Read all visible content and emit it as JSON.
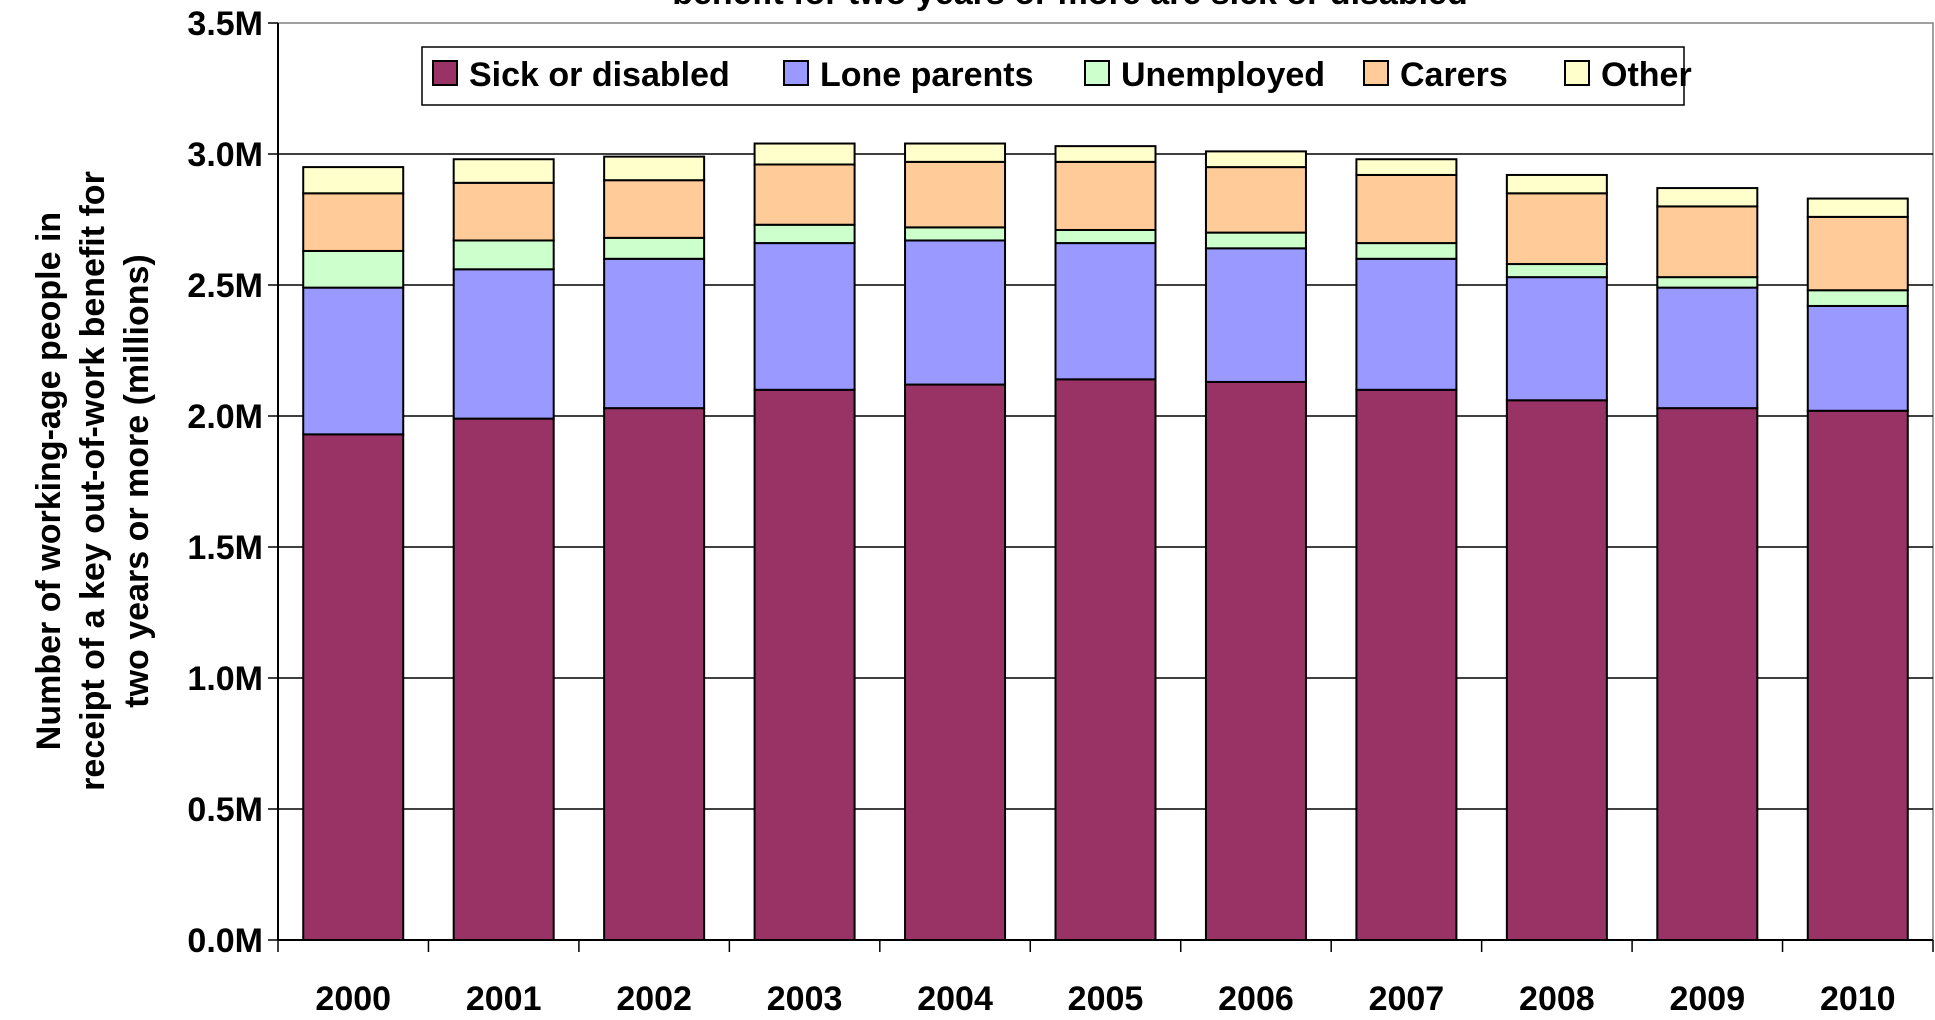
{
  "chart_data": {
    "type": "bar",
    "stacked": true,
    "title": "benefit for two years or more are sick or disabled",
    "ylabel_lines": [
      "Number of working-age people in",
      "receipt of a key out-of-work benefit for",
      "two years or more (millions)"
    ],
    "xlabel": "",
    "ylim": [
      0,
      3.5
    ],
    "yticks": [
      0,
      0.5,
      1.0,
      1.5,
      2.0,
      2.5,
      3.0,
      3.5
    ],
    "ytick_labels": [
      "0.0M",
      "0.5M",
      "1.0M",
      "1.5M",
      "2.0M",
      "2.5M",
      "3.0M",
      "3.5M"
    ],
    "categories": [
      "2000",
      "2001",
      "2002",
      "2003",
      "2004",
      "2005",
      "2006",
      "2007",
      "2008",
      "2009",
      "2010"
    ],
    "grid": true,
    "legend_position": "top",
    "series": [
      {
        "name": "Sick or disabled",
        "color": "#993366",
        "values": [
          1.93,
          1.99,
          2.03,
          2.1,
          2.12,
          2.14,
          2.13,
          2.1,
          2.06,
          2.03,
          2.02
        ]
      },
      {
        "name": "Lone parents",
        "color": "#9999ff",
        "values": [
          0.56,
          0.57,
          0.57,
          0.56,
          0.55,
          0.52,
          0.51,
          0.5,
          0.47,
          0.46,
          0.4
        ]
      },
      {
        "name": "Unemployed",
        "color": "#ccffcc",
        "values": [
          0.14,
          0.11,
          0.08,
          0.07,
          0.05,
          0.05,
          0.06,
          0.06,
          0.05,
          0.04,
          0.06
        ]
      },
      {
        "name": "Carers",
        "color": "#ffcc99",
        "values": [
          0.22,
          0.22,
          0.22,
          0.23,
          0.25,
          0.26,
          0.25,
          0.26,
          0.27,
          0.27,
          0.28
        ]
      },
      {
        "name": "Other",
        "color": "#ffffcc",
        "values": [
          0.1,
          0.09,
          0.09,
          0.08,
          0.07,
          0.06,
          0.06,
          0.06,
          0.07,
          0.07,
          0.07
        ]
      }
    ]
  }
}
